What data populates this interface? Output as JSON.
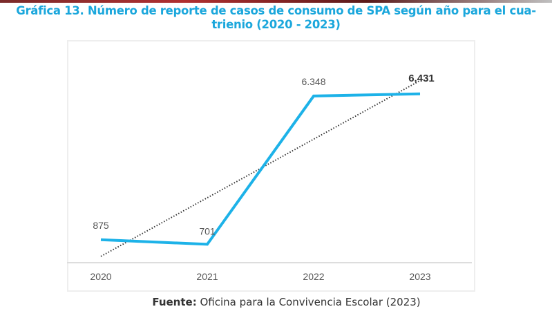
{
  "title_line1": "Gráfica 13. Número de reporte de casos de consumo de SPA según año para el cua-",
  "title_line2": "trienio (2020 - 2023)",
  "source_label": "Fuente:",
  "source_text": " Oficina para la Convivencia Escolar (2023)",
  "colors": {
    "title": "#1ba7dc",
    "series": "#1db2e8",
    "trendline": "#333333"
  },
  "chart_data": {
    "type": "line",
    "title": "Gráfica 13. Número de reporte de casos de consumo de SPA según año para el cuatrienio (2020 - 2023)",
    "categories": [
      "2020",
      "2021",
      "2022",
      "2023"
    ],
    "values": [
      875,
      701,
      6348,
      6431
    ],
    "data_labels": [
      "875",
      "701",
      "6.348",
      "6,431"
    ],
    "trendline": "linear, dotted",
    "ylim": [
      0,
      7000
    ],
    "grid": false,
    "legend": "none",
    "xlabel": "",
    "ylabel": ""
  }
}
